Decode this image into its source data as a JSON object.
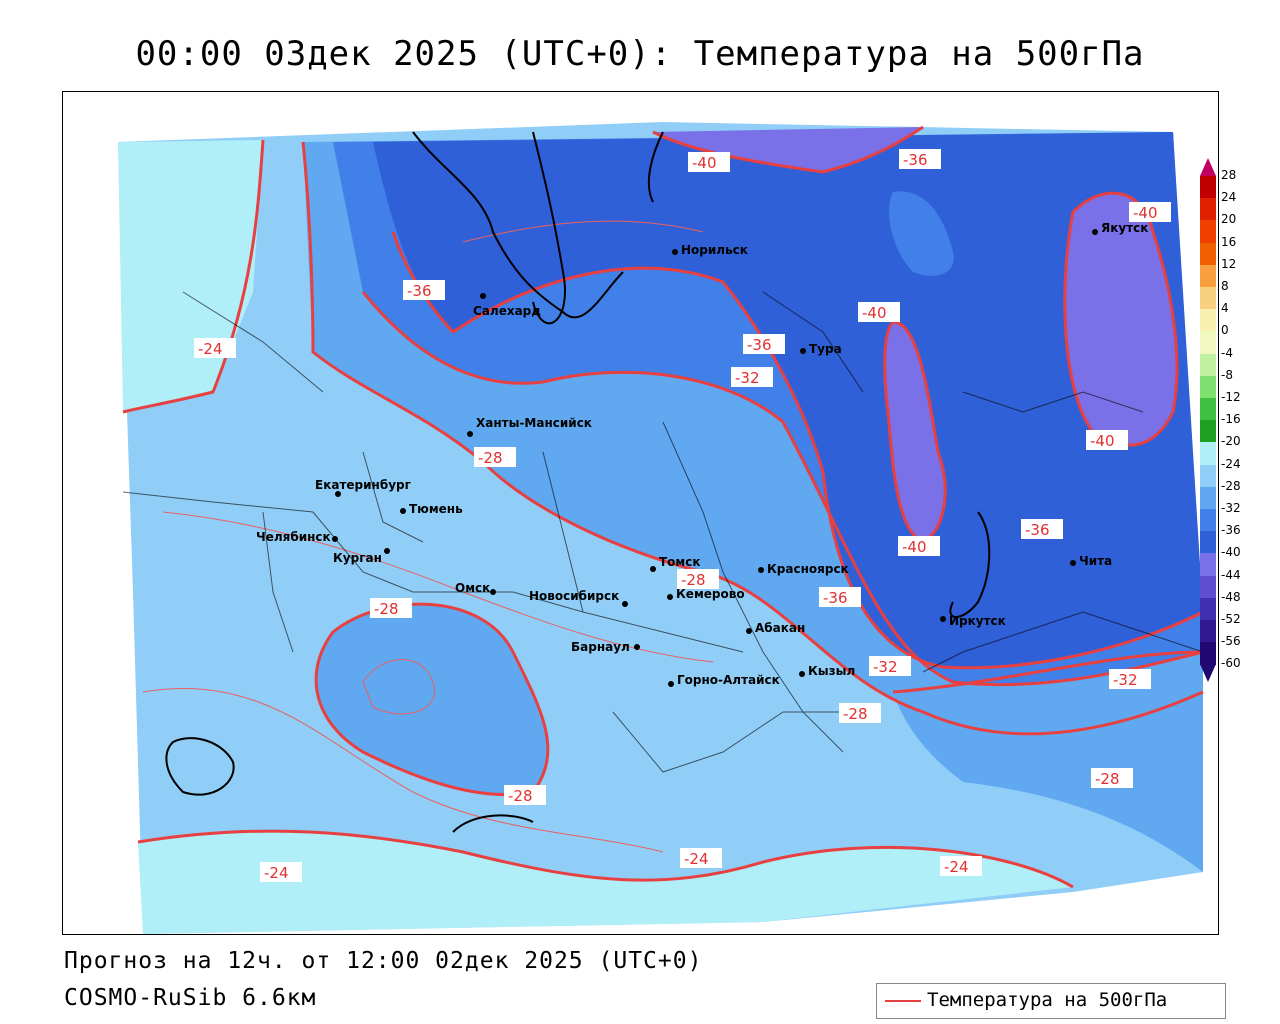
{
  "title": "00:00 03дек 2025 (UTC+0): Температура на 500гПа",
  "footer": {
    "forecast": "Прогноз на 12ч. от 12:00 02дек 2025 (UTC+0)",
    "model": "COSMO-RuSib 6.6км"
  },
  "legend": {
    "label": "Температура на 500гПа",
    "line_color": "#e84040"
  },
  "colorbar": {
    "levels": [
      "28",
      "24",
      "20",
      "16",
      "12",
      "8",
      "4",
      "0",
      "-4",
      "-8",
      "-12",
      "-16",
      "-20",
      "-24",
      "-28",
      "-32",
      "-36",
      "-40",
      "-44",
      "-48",
      "-52",
      "-56",
      "-60"
    ],
    "colors": [
      "#c00060",
      "#c00000",
      "#e02000",
      "#f04000",
      "#f06000",
      "#f8a040",
      "#f8d080",
      "#f8f0b0",
      "#f0f8c0",
      "#c0f0a0",
      "#80e070",
      "#40c040",
      "#20a020",
      "#b0eef8",
      "#90cef8",
      "#60a8f0",
      "#4080e8",
      "#3060d8",
      "#7a70e8",
      "#6050d0",
      "#4030b0",
      "#301890",
      "#200870"
    ]
  },
  "isotherm_labels": [
    {
      "text": "-40"
    },
    {
      "text": "-36"
    },
    {
      "text": "-40"
    },
    {
      "text": "-36"
    },
    {
      "text": "-24"
    },
    {
      "text": "-40"
    },
    {
      "text": "-36"
    },
    {
      "text": "-32"
    },
    {
      "text": "-28"
    },
    {
      "text": "-40"
    },
    {
      "text": "-40"
    },
    {
      "text": "-36"
    },
    {
      "text": "-28"
    },
    {
      "text": "-28"
    },
    {
      "text": "-36"
    },
    {
      "text": "-32"
    },
    {
      "text": "-28"
    },
    {
      "text": "-32"
    },
    {
      "text": "-28"
    },
    {
      "text": "-28"
    },
    {
      "text": "-24"
    },
    {
      "text": "-24"
    },
    {
      "text": "-24"
    }
  ],
  "cities": [
    {
      "name": "Норильск"
    },
    {
      "name": "Салехард"
    },
    {
      "name": "Тура"
    },
    {
      "name": "Якутск"
    },
    {
      "name": "Ханты-Мансийск"
    },
    {
      "name": "Екатеринбург"
    },
    {
      "name": "Тюмень"
    },
    {
      "name": "Челябинск"
    },
    {
      "name": "Курган"
    },
    {
      "name": "Омск"
    },
    {
      "name": "Новосибирск"
    },
    {
      "name": "Томск"
    },
    {
      "name": "Кемерово"
    },
    {
      "name": "Красноярск"
    },
    {
      "name": "Барнаул"
    },
    {
      "name": "Абакан"
    },
    {
      "name": "Иркутск"
    },
    {
      "name": "Чита"
    },
    {
      "name": "Кызыл"
    },
    {
      "name": "Горно-Алтайск"
    }
  ]
}
